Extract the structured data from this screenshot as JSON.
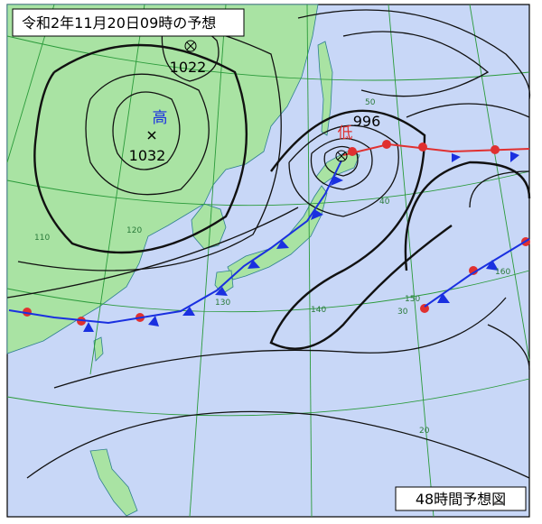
{
  "header": {
    "title": "令和2年11月20日09時の予想"
  },
  "footer": {
    "label": "48時間予想図"
  },
  "high": {
    "kind": "高",
    "pressure": "1032"
  },
  "low": {
    "kind": "低",
    "pressure": "996"
  },
  "center": {
    "pressure": "1022"
  },
  "latitude_labels": [
    "50",
    "40",
    "30",
    "20"
  ],
  "longitude_labels": [
    "110",
    "120",
    "130",
    "140",
    "150",
    "160"
  ]
}
